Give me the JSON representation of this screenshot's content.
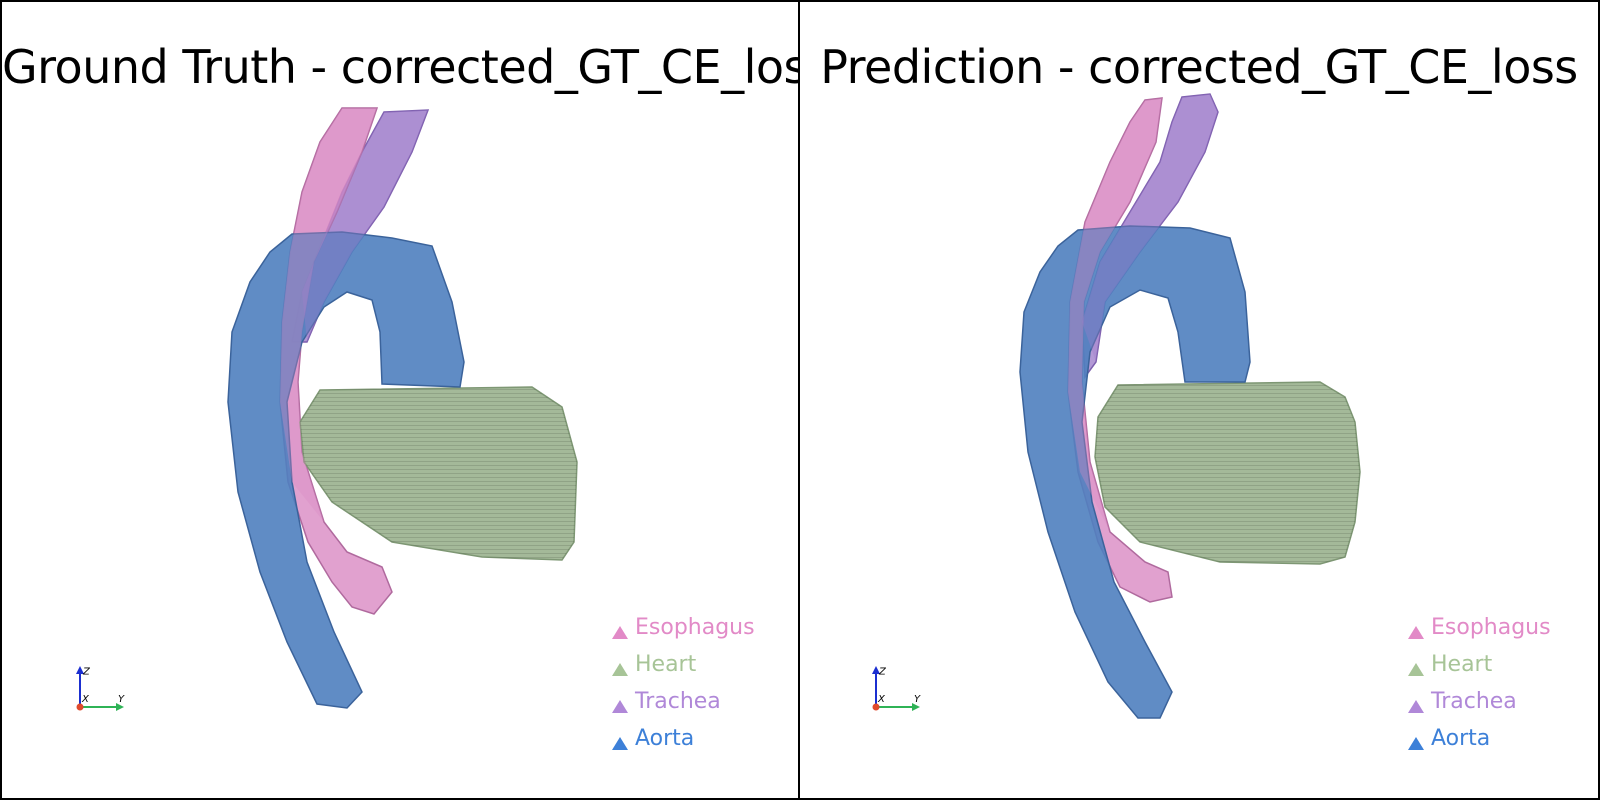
{
  "panels": [
    {
      "title": "Ground Truth - corrected_GT_CE_loss",
      "legend": [
        {
          "label": "Esophagus",
          "color": "#e28ac7"
        },
        {
          "label": "Heart",
          "color": "#a7c497"
        },
        {
          "label": "Trachea",
          "color": "#b088d8"
        },
        {
          "label": "Aorta",
          "color": "#3d80d8"
        }
      ],
      "axes": {
        "x": "X",
        "y": "Y",
        "z": "Z"
      }
    },
    {
      "title": "Prediction - corrected_GT_CE_loss",
      "legend": [
        {
          "label": "Esophagus",
          "color": "#e28ac7"
        },
        {
          "label": "Heart",
          "color": "#a7c497"
        },
        {
          "label": "Trachea",
          "color": "#b088d8"
        },
        {
          "label": "Aorta",
          "color": "#3d80d8"
        }
      ],
      "axes": {
        "x": "X",
        "y": "Y",
        "z": "Z"
      }
    }
  ],
  "colors": {
    "aorta": "#4f7fbf",
    "heart": "#9fb593",
    "esophagus": "#d98ac3",
    "trachea": "#a07fcc"
  }
}
